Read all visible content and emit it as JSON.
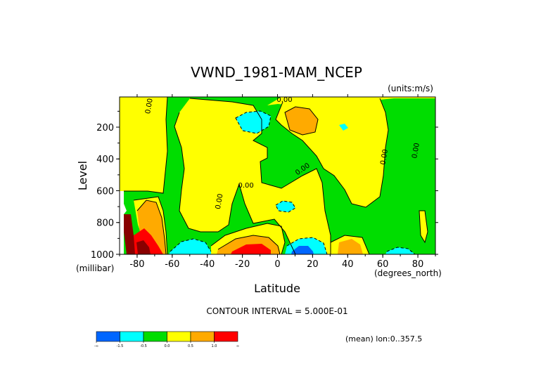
{
  "chart_data": {
    "type": "contour",
    "title": "VWND_1981-MAM_NCEP",
    "units_label": "(units:m/s)",
    "xlabel": "Latitude",
    "ylabel": "Level",
    "x_unit_label": "(degrees_north)",
    "y_unit_label": "(millibar)",
    "xlim": [
      -90,
      90
    ],
    "ylim": [
      1000,
      10
    ],
    "x_ticks": [
      -80,
      -60,
      -40,
      -20,
      0,
      20,
      40,
      60,
      80
    ],
    "x_tick_labels": [
      "-80",
      "-60",
      "-40",
      "-20",
      "0",
      "20",
      "40",
      "60",
      "80"
    ],
    "y_ticks": [
      200,
      400,
      600,
      800,
      1000
    ],
    "y_tick_labels": [
      "200",
      "400",
      "600",
      "800",
      "1000"
    ],
    "contour_interval_label": "CONTOUR INTERVAL = 5.000E-01",
    "mean_label": "(mean) lon:0..357.5",
    "contour_labels": [
      {
        "text": "0.00",
        "x": -72,
        "y": 70
      },
      {
        "text": "0.00",
        "x": 4,
        "y": 40
      },
      {
        "text": "0.00",
        "x": 15,
        "y": 475
      },
      {
        "text": "0.00",
        "x": -32,
        "y": 670
      },
      {
        "text": "0.00",
        "x": -18,
        "y": 580
      },
      {
        "text": "0.00",
        "x": 62,
        "y": 390
      },
      {
        "text": "0.00",
        "x": 80,
        "y": 350
      }
    ],
    "colorbar": {
      "bins": [
        {
          "color": "#0066ff",
          "label": "-∞"
        },
        {
          "color": "#00ffff",
          "label": "-1.5"
        },
        {
          "color": "#00dd00",
          "label": "-0.5"
        },
        {
          "color": "#ffff00",
          "label": "0.0"
        },
        {
          "color": "#ffaa00",
          "label": "0.5"
        },
        {
          "color": "#ff0000",
          "label": "1.0"
        }
      ],
      "end_label": "∞"
    },
    "regions": [
      {
        "level": "weak_negative",
        "color": "#00dd00"
      },
      {
        "level": "weak_positive",
        "color": "#ffff00"
      },
      {
        "level": "moderate_positive",
        "color": "#ffaa00"
      },
      {
        "level": "strong_positive",
        "color": "#ff0000"
      },
      {
        "level": "moderate_negative",
        "color": "#00ffff"
      },
      {
        "level": "strong_negative",
        "color": "#0066ff"
      }
    ]
  }
}
